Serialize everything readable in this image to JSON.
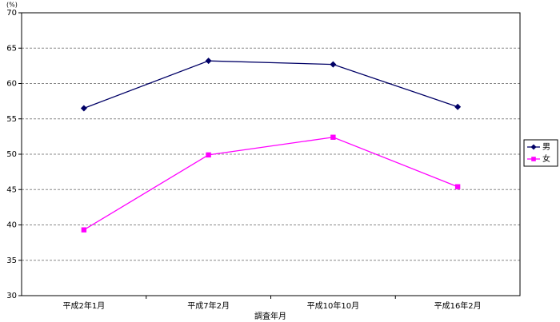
{
  "chart_data": {
    "type": "line",
    "unit": "(%)",
    "x_label": "調査年月",
    "categories": [
      "平成2年1月",
      "平成7年2月",
      "平成10年10月",
      "平成16年2月"
    ],
    "series": [
      {
        "name": "男",
        "color": "#000066",
        "marker": "diamond",
        "values": [
          56.5,
          63.2,
          62.7,
          56.7
        ]
      },
      {
        "name": "女",
        "color": "#ff00ff",
        "marker": "square",
        "values": [
          39.3,
          49.9,
          52.4,
          45.4
        ]
      }
    ],
    "ylim": [
      30,
      70
    ],
    "yticks": [
      30,
      35,
      40,
      45,
      50,
      55,
      60,
      65,
      70
    ],
    "grid": true,
    "legend": "right"
  }
}
